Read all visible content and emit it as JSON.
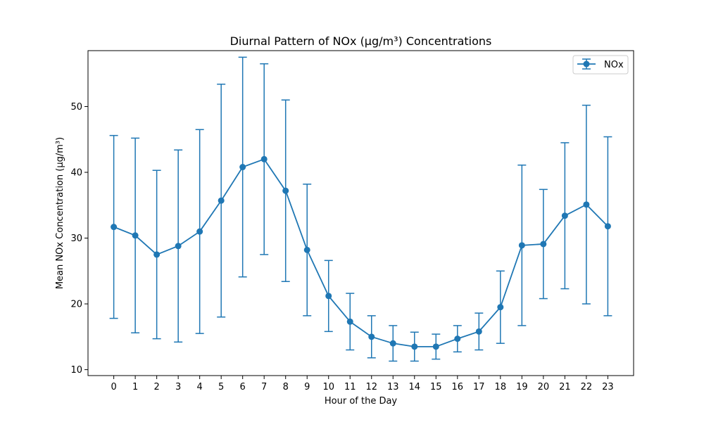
{
  "chart_data": {
    "type": "line",
    "title": "Diurnal Pattern of NOx (µg/m³) Concentrations",
    "xlabel": "Hour of the Day",
    "ylabel": "Mean NOx Concentration (µg/m³)",
    "x": [
      0,
      1,
      2,
      3,
      4,
      5,
      6,
      7,
      8,
      9,
      10,
      11,
      12,
      13,
      14,
      15,
      16,
      17,
      18,
      19,
      20,
      21,
      22,
      23
    ],
    "xticks": [
      "0",
      "1",
      "2",
      "3",
      "4",
      "5",
      "6",
      "7",
      "8",
      "9",
      "10",
      "11",
      "12",
      "13",
      "14",
      "15",
      "16",
      "17",
      "18",
      "19",
      "20",
      "21",
      "22",
      "23"
    ],
    "yticks": [
      10,
      20,
      30,
      40,
      50
    ],
    "ylim": [
      9.1,
      58.5
    ],
    "xlim": [
      -1.2,
      24.2
    ],
    "grid": false,
    "legend_position": "upper-right",
    "series": [
      {
        "name": "NOx",
        "color": "#1f77b4",
        "marker": "circle",
        "values": [
          31.7,
          30.4,
          27.5,
          28.8,
          31.0,
          35.7,
          40.8,
          42.0,
          37.2,
          28.2,
          21.2,
          17.3,
          15.0,
          14.0,
          13.5,
          13.5,
          14.7,
          15.8,
          19.5,
          28.9,
          29.1,
          33.4,
          35.1,
          31.8
        ],
        "error": [
          13.9,
          14.8,
          12.8,
          14.6,
          15.5,
          17.7,
          16.7,
          14.5,
          13.8,
          10.0,
          5.4,
          4.3,
          3.2,
          2.7,
          2.2,
          1.9,
          2.0,
          2.8,
          5.5,
          12.2,
          8.3,
          11.1,
          15.1,
          13.6
        ]
      }
    ]
  }
}
